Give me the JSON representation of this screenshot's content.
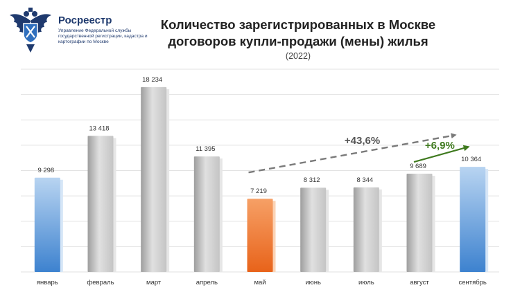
{
  "header": {
    "brand": "Росреестр",
    "brand_subtitle": "Управление Федеральной службы государственной регистрации, кадастра и картографии по Москве"
  },
  "chart_data": {
    "type": "bar",
    "title_line1": "Количество зарегистрированных в Москве",
    "title_line2": "договоров купли-продажи (мены) жилья",
    "subtitle": "(2022)",
    "categories": [
      "январь",
      "февраль",
      "март",
      "апрель",
      "май",
      "июнь",
      "июль",
      "август",
      "сентябрь"
    ],
    "values": [
      9298,
      13418,
      18234,
      11395,
      7219,
      8312,
      8344,
      9689,
      10364
    ],
    "value_labels": [
      "9 298",
      "13 418",
      "18 234",
      "11 395",
      "7 219",
      "8 312",
      "8 344",
      "9 689",
      "10 364"
    ],
    "bar_styles": [
      "blue",
      "gray",
      "gray",
      "gray",
      "orange",
      "gray",
      "gray",
      "gray",
      "blue"
    ],
    "ylim": [
      0,
      20000
    ],
    "grid": true,
    "xlabel": "",
    "ylabel": "",
    "annotations": [
      {
        "text": "+43,6%",
        "from_category": "май",
        "to_category": "сентябрь",
        "style": "dashed-gray-arrow"
      },
      {
        "text": "+6,9%",
        "from_category": "август",
        "to_category": "сентябрь",
        "style": "solid-green-arrow"
      }
    ]
  },
  "colors": {
    "blue": "#4d8fd4",
    "orange": "#f07a2a",
    "gray": "#bdbdbd",
    "green": "#3f7a1f",
    "dashed": "#7a7a7a",
    "grid": "#e2e2e2"
  }
}
